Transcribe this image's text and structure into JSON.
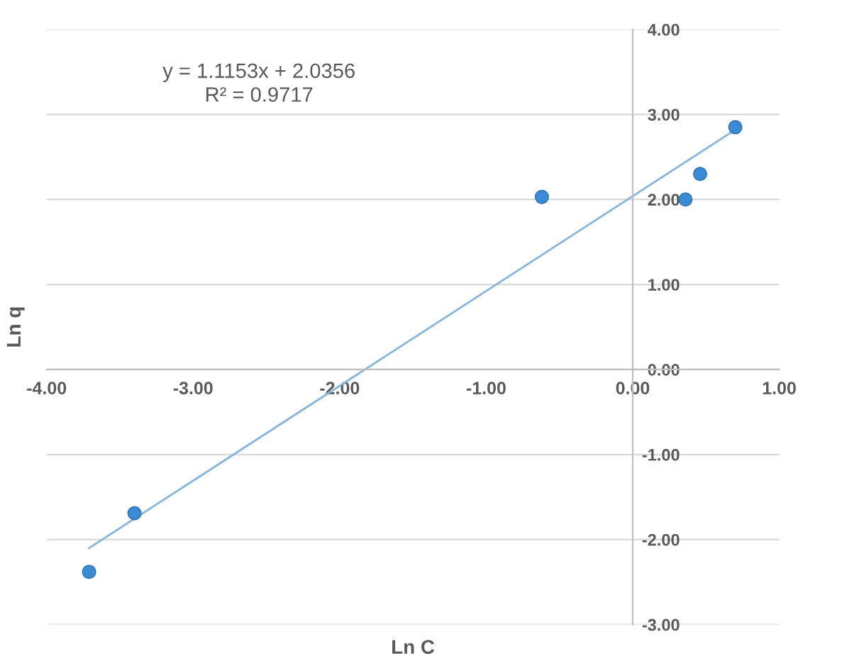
{
  "chart_data": {
    "type": "scatter",
    "xlabel": "Ln C",
    "ylabel": "Ln q",
    "annotations": [
      "y = 1.1153x + 2.0356\nR² = 0.9717"
    ],
    "x": [
      -3.71,
      -3.4,
      -0.62,
      0.36,
      0.46,
      0.7
    ],
    "series": [
      {
        "color": "#3b8ad6",
        "values": [
          -2.38,
          -1.69,
          2.03,
          2.0,
          2.3,
          2.85
        ]
      },
      {
        "type": "line",
        "marker": "none",
        "color": "#86b6e0",
        "x": [
          -3.71,
          0.7
        ],
        "values": [
          -2.1,
          2.82
        ]
      }
    ],
    "xlim": [
      -4,
      1
    ],
    "ylim": [
      -3,
      4
    ],
    "xticks": [
      {
        "value": -4,
        "label": "-4.00"
      },
      {
        "value": -3,
        "label": "-3.00"
      },
      {
        "value": -2,
        "label": "-2.00"
      },
      {
        "value": -1,
        "label": "-1.00"
      },
      {
        "value": 0,
        "label": "0.00"
      },
      {
        "value": 1,
        "label": "1.00"
      }
    ],
    "yticks": [
      {
        "value": -3,
        "label": "-3.00"
      },
      {
        "value": -2,
        "label": "-2.00"
      },
      {
        "value": -1,
        "label": "-1.00"
      },
      {
        "value": 0,
        "label": "0.00"
      },
      {
        "value": 1,
        "label": "1.00"
      },
      {
        "value": 2,
        "label": "2.00"
      },
      {
        "value": 3,
        "label": "3.00"
      },
      {
        "value": 4,
        "label": "4.00"
      }
    ],
    "grid": "y",
    "marker": "circle"
  }
}
